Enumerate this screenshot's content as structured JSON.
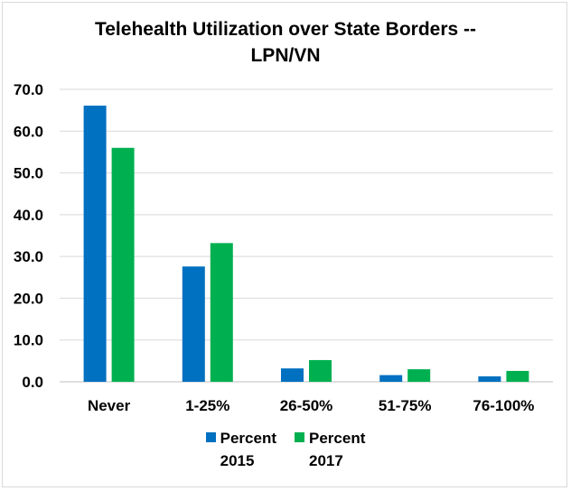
{
  "chart_data": {
    "type": "bar",
    "title_lines": [
      "Telehealth Utilization over State Borders --",
      "LPN/VN"
    ],
    "categories": [
      "Never",
      "1-25%",
      "26-50%",
      "51-75%",
      "76-100%"
    ],
    "series": [
      {
        "name": "Percent 2015",
        "legend_lines": [
          "Percent",
          "2015"
        ],
        "color": "#0070c0",
        "values": [
          66.1,
          27.6,
          3.2,
          1.6,
          1.3
        ]
      },
      {
        "name": "Percent 2017",
        "legend_lines": [
          "Percent",
          "2017"
        ],
        "color": "#00b050",
        "values": [
          56.0,
          33.2,
          5.2,
          3.0,
          2.6
        ]
      }
    ],
    "yticks": [
      "0.0",
      "10.0",
      "20.0",
      "30.0",
      "40.0",
      "50.0",
      "60.0",
      "70.0"
    ],
    "ylim": [
      0,
      70
    ],
    "grid": true,
    "legend_position": "bottom"
  }
}
